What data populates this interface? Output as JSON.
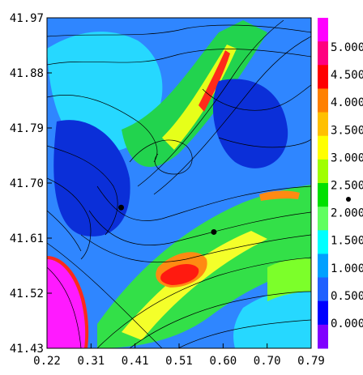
{
  "chart_data": {
    "type": "heatmap",
    "title": "",
    "xlabel": "",
    "ylabel": "",
    "xlim": [
      0.22,
      0.79
    ],
    "ylim": [
      41.43,
      41.97
    ],
    "x_ticks": [
      "0.22",
      "0.31",
      "0.41",
      "0.51",
      "0.60",
      "0.70",
      "0.79"
    ],
    "y_ticks": [
      "41.97",
      "41.88",
      "41.79",
      "41.70",
      "41.61",
      "41.52",
      "41.43"
    ],
    "colorbar": {
      "labels": [
        "5.000",
        "4.500",
        "4.000",
        "3.500",
        "3.000",
        "2.500",
        "2.000",
        "1.500",
        "1.000",
        "0.500",
        "0.000"
      ],
      "colors": [
        "#ff00ff",
        "#ff0080",
        "#ff0000",
        "#ff8000",
        "#ffc000",
        "#ffff00",
        "#a0ff00",
        "#00e000",
        "#60ff60",
        "#00ffff",
        "#00a0ff",
        "#2060ff",
        "#0000ff",
        "#8000ff"
      ]
    },
    "points": [
      {
        "x": 0.38,
        "y": 41.66
      },
      {
        "x": 0.58,
        "y": 41.62
      }
    ],
    "overlay": "streamlines"
  }
}
